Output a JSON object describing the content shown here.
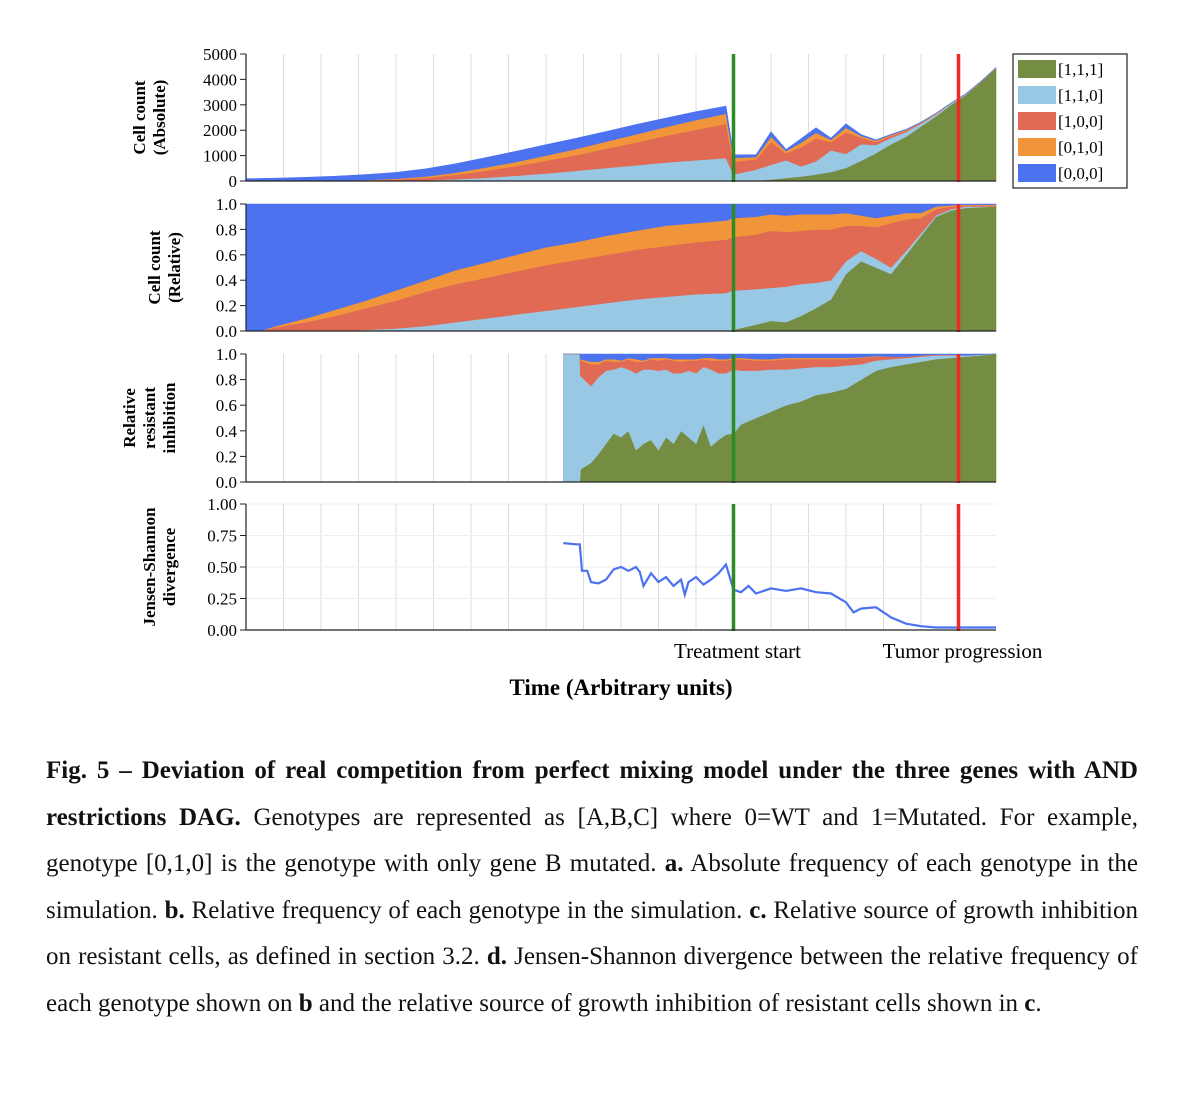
{
  "chart_data": [
    {
      "panel": "a",
      "type": "area",
      "stacked": true,
      "ylabel": [
        "Cell count",
        "(Absolute)"
      ],
      "yticks": [
        "0",
        "1000",
        "2000",
        "3000",
        "4000",
        "5000"
      ],
      "ylim": [
        0,
        5000
      ],
      "x": [
        0,
        4,
        8,
        12,
        16,
        20,
        24,
        28,
        32,
        36,
        40,
        44,
        48,
        52,
        56,
        60,
        64,
        65,
        68,
        70,
        72,
        74,
        76,
        78,
        80,
        82,
        84,
        86,
        88,
        90,
        92,
        94,
        96,
        98,
        100
      ],
      "series": [
        {
          "name": "[1,1,1]",
          "color": "#758c43",
          "values": [
            0,
            0,
            0,
            0,
            0,
            0,
            0,
            0,
            0,
            0,
            0,
            0,
            0,
            0,
            0,
            0,
            0,
            0,
            20,
            60,
            120,
            180,
            260,
            360,
            520,
            800,
            1100,
            1450,
            1750,
            2150,
            2550,
            3000,
            3400,
            3900,
            4450
          ]
        },
        {
          "name": "[1,1,0]",
          "color": "#98c8e3",
          "values": [
            0,
            0,
            0,
            1,
            3,
            10,
            30,
            70,
            130,
            210,
            300,
            400,
            510,
            620,
            730,
            820,
            900,
            260,
            430,
            580,
            700,
            400,
            520,
            850,
            550,
            650,
            320,
            250,
            180,
            110,
            80,
            50,
            30,
            15,
            10
          ]
        },
        {
          "name": "[1,0,0]",
          "color": "#e16a54",
          "values": [
            0,
            1,
            4,
            10,
            22,
            50,
            100,
            180,
            280,
            380,
            500,
            620,
            760,
            900,
            1050,
            1200,
            1350,
            500,
            400,
            900,
            280,
            750,
            900,
            320,
            850,
            250,
            120,
            80,
            50,
            30,
            20,
            10,
            5,
            5,
            0
          ]
        },
        {
          "name": "[0,1,0]",
          "color": "#f1953a",
          "values": [
            0,
            1,
            3,
            8,
            16,
            30,
            50,
            80,
            120,
            160,
            200,
            240,
            280,
            320,
            350,
            380,
            400,
            150,
            100,
            200,
            80,
            180,
            220,
            100,
            180,
            80,
            50,
            40,
            30,
            20,
            10,
            5,
            5,
            0,
            0
          ]
        },
        {
          "name": "[0,0,0]",
          "color": "#4c72f0",
          "values": [
            90,
            110,
            140,
            170,
            210,
            250,
            300,
            350,
            390,
            420,
            430,
            420,
            400,
            380,
            350,
            330,
            300,
            120,
            80,
            200,
            60,
            150,
            200,
            60,
            150,
            50,
            30,
            20,
            20,
            10,
            10,
            5,
            0,
            0,
            0
          ]
        }
      ],
      "legend_position": "top-right",
      "markers": [
        {
          "x": 65,
          "color": "#2e8a23"
        },
        {
          "x": 95,
          "color": "#ec2c22"
        }
      ]
    },
    {
      "panel": "b",
      "type": "area",
      "stacked": true,
      "ylabel": [
        "Cell count",
        "(Relative)"
      ],
      "yticks": [
        "0.0",
        "0.2",
        "0.4",
        "0.6",
        "0.8",
        "1.0"
      ],
      "ylim": [
        0,
        1
      ],
      "x": [
        0,
        2,
        4,
        8,
        12,
        16,
        20,
        24,
        28,
        32,
        36,
        40,
        44,
        48,
        52,
        56,
        60,
        64,
        65,
        68,
        70,
        72,
        74,
        76,
        78,
        80,
        82,
        84,
        86,
        88,
        90,
        92,
        94,
        96,
        100
      ],
      "series": [
        {
          "name": "[1,1,1]",
          "values": [
            0,
            0,
            0,
            0,
            0,
            0,
            0,
            0,
            0,
            0,
            0,
            0,
            0,
            0,
            0,
            0,
            0,
            0,
            0.01,
            0.05,
            0.08,
            0.07,
            0.12,
            0.18,
            0.25,
            0.45,
            0.55,
            0.5,
            0.45,
            0.6,
            0.75,
            0.9,
            0.95,
            0.97,
            0.98
          ]
        },
        {
          "name": "[1,1,0]",
          "values": [
            0,
            0,
            0,
            0,
            0,
            0.01,
            0.02,
            0.04,
            0.07,
            0.1,
            0.13,
            0.16,
            0.19,
            0.22,
            0.25,
            0.27,
            0.29,
            0.3,
            0.31,
            0.28,
            0.26,
            0.28,
            0.25,
            0.2,
            0.15,
            0.1,
            0.08,
            0.07,
            0.05,
            0.03,
            0.02,
            0.01,
            0.01,
            0.01,
            0
          ]
        },
        {
          "name": "[1,0,0]",
          "values": [
            0,
            0,
            0.03,
            0.07,
            0.12,
            0.17,
            0.22,
            0.27,
            0.3,
            0.32,
            0.34,
            0.36,
            0.37,
            0.38,
            0.39,
            0.4,
            0.41,
            0.42,
            0.42,
            0.43,
            0.45,
            0.43,
            0.42,
            0.42,
            0.4,
            0.28,
            0.2,
            0.25,
            0.35,
            0.25,
            0.12,
            0.05,
            0.02,
            0.01,
            0.01
          ]
        },
        {
          "name": "[0,1,0]",
          "values": [
            0,
            0,
            0.01,
            0.03,
            0.05,
            0.06,
            0.08,
            0.09,
            0.11,
            0.12,
            0.13,
            0.14,
            0.14,
            0.15,
            0.15,
            0.16,
            0.15,
            0.15,
            0.15,
            0.14,
            0.13,
            0.13,
            0.13,
            0.12,
            0.12,
            0.1,
            0.08,
            0.07,
            0.06,
            0.05,
            0.04,
            0.02,
            0.01,
            0.005,
            0.005
          ]
        },
        {
          "name": "[0,0,0]",
          "values": [
            1,
            1,
            0.96,
            0.9,
            0.83,
            0.76,
            0.68,
            0.6,
            0.52,
            0.46,
            0.4,
            0.34,
            0.3,
            0.25,
            0.21,
            0.17,
            0.15,
            0.13,
            0.12,
            0.1,
            0.08,
            0.09,
            0.08,
            0.08,
            0.08,
            0.07,
            0.09,
            0.11,
            0.09,
            0.07,
            0.07,
            0.02,
            0.01,
            0.005,
            0.005
          ]
        }
      ],
      "markers": [
        {
          "x": 65,
          "color": "#2e8a23"
        },
        {
          "x": 95,
          "color": "#ec2c22"
        }
      ]
    },
    {
      "panel": "c",
      "type": "area",
      "stacked": true,
      "ylabel": [
        "Relative",
        "resistant",
        "inhibition"
      ],
      "yticks": [
        "0.0",
        "0.2",
        "0.4",
        "0.6",
        "0.8",
        "1.0"
      ],
      "ylim": [
        0,
        1
      ],
      "x": [
        42.3,
        44.5,
        44.6,
        46,
        47,
        48,
        49,
        50,
        51,
        52,
        53,
        54,
        55,
        56,
        57,
        58,
        59,
        60,
        61,
        62,
        63,
        64,
        65,
        66,
        68,
        70,
        72,
        74,
        76,
        78,
        80,
        82,
        84,
        86,
        88,
        90,
        92,
        94,
        96,
        98,
        100
      ],
      "series": [
        {
          "name": "[1,1,1]",
          "values": [
            0,
            0,
            0.1,
            0.15,
            0.22,
            0.3,
            0.38,
            0.35,
            0.4,
            0.25,
            0.3,
            0.33,
            0.25,
            0.35,
            0.3,
            0.4,
            0.35,
            0.3,
            0.45,
            0.28,
            0.33,
            0.37,
            0.38,
            0.45,
            0.5,
            0.55,
            0.6,
            0.63,
            0.68,
            0.7,
            0.73,
            0.8,
            0.87,
            0.9,
            0.92,
            0.94,
            0.96,
            0.97,
            0.98,
            0.99,
            1.0
          ]
        },
        {
          "name": "[1,1,0]",
          "values": [
            1,
            1,
            0.73,
            0.6,
            0.6,
            0.57,
            0.5,
            0.55,
            0.48,
            0.6,
            0.58,
            0.55,
            0.62,
            0.53,
            0.55,
            0.45,
            0.52,
            0.55,
            0.45,
            0.6,
            0.52,
            0.48,
            0.5,
            0.42,
            0.37,
            0.33,
            0.28,
            0.26,
            0.22,
            0.2,
            0.18,
            0.12,
            0.08,
            0.06,
            0.05,
            0.04,
            0.03,
            0.02,
            0.01,
            0.005,
            0
          ]
        },
        {
          "name": "[1,0,0]",
          "values": [
            0,
            0,
            0.12,
            0.17,
            0.1,
            0.08,
            0.06,
            0.04,
            0.08,
            0.09,
            0.06,
            0.08,
            0.08,
            0.08,
            0.1,
            0.09,
            0.08,
            0.1,
            0.06,
            0.07,
            0.1,
            0.1,
            0.08,
            0.09,
            0.08,
            0.07,
            0.08,
            0.07,
            0.06,
            0.06,
            0.05,
            0.05,
            0.03,
            0.02,
            0.01,
            0.01,
            0.005,
            0.005,
            0,
            0,
            0
          ]
        },
        {
          "name": "[0,1,0]",
          "values": [
            0,
            0,
            0.01,
            0.02,
            0.02,
            0.01,
            0.02,
            0.01,
            0.01,
            0.02,
            0.01,
            0.01,
            0.02,
            0.01,
            0.01,
            0.02,
            0.01,
            0.01,
            0.01,
            0.02,
            0.01,
            0.01,
            0.01,
            0.01,
            0.01,
            0.01,
            0.01,
            0.01,
            0.01,
            0.01,
            0.01,
            0.005,
            0.005,
            0,
            0,
            0,
            0,
            0,
            0,
            0,
            0
          ]
        },
        {
          "name": "[0,0,0]",
          "values": [
            0,
            0,
            0.04,
            0.06,
            0.06,
            0.04,
            0.04,
            0.05,
            0.03,
            0.04,
            0.05,
            0.03,
            0.03,
            0.03,
            0.04,
            0.04,
            0.04,
            0.04,
            0.03,
            0.03,
            0.04,
            0.04,
            0.03,
            0.03,
            0.04,
            0.04,
            0.03,
            0.03,
            0.03,
            0.03,
            0.03,
            0.025,
            0.015,
            0.02,
            0.02,
            0.01,
            0.005,
            0.005,
            0.01,
            0.005,
            0
          ]
        }
      ],
      "markers": [
        {
          "x": 65,
          "color": "#2e8a23"
        },
        {
          "x": 95,
          "color": "#ec2c22"
        }
      ]
    },
    {
      "panel": "d",
      "type": "line",
      "ylabel": [
        "Jensen-Shannon",
        "divergence"
      ],
      "yticks": [
        "0.00",
        "0.25",
        "0.50",
        "0.75",
        "1.00"
      ],
      "ylim": [
        0,
        1
      ],
      "xlabel": "Time (Arbitrary units)",
      "series": [
        {
          "color": "#4c72f0",
          "x": [
            42.3,
            44,
            44.5,
            44.8,
            45.5,
            46,
            47,
            48,
            49,
            50,
            51,
            52,
            52.5,
            53,
            54,
            55,
            56,
            57,
            58,
            58.5,
            59,
            60,
            61,
            62,
            63,
            64,
            65,
            66,
            67,
            68,
            70,
            72,
            74,
            76,
            78,
            80,
            81,
            82,
            84,
            86,
            88,
            90,
            92,
            94,
            96,
            98,
            100
          ],
          "y": [
            0.69,
            0.68,
            0.68,
            0.47,
            0.47,
            0.38,
            0.37,
            0.4,
            0.48,
            0.5,
            0.47,
            0.5,
            0.46,
            0.35,
            0.45,
            0.38,
            0.42,
            0.35,
            0.4,
            0.28,
            0.38,
            0.42,
            0.36,
            0.4,
            0.45,
            0.52,
            0.32,
            0.3,
            0.35,
            0.29,
            0.33,
            0.31,
            0.33,
            0.3,
            0.29,
            0.22,
            0.14,
            0.17,
            0.18,
            0.1,
            0.05,
            0.03,
            0.02,
            0.02,
            0.02,
            0.02,
            0.02
          ]
        }
      ],
      "markers": [
        {
          "x": 65,
          "color": "#2e8a23"
        },
        {
          "x": 95,
          "color": "#ec2c22"
        }
      ],
      "annotations": [
        "Treatment start",
        "Tumor progression"
      ]
    }
  ],
  "caption": {
    "fig_title": "Fig. 5 – Deviation of real competition from perfect mixing model under the three genes with AND restrictions DAG.",
    "text1": " Genotypes are represented as [A,B,C] where 0=WT and 1=Mutated. For example, genotype [0,1,0] is the genotype with only gene B mutated. ",
    "a_label": "a.",
    "a_text": " Absolute frequency of each genotype in the simulation. ",
    "b_label": "b.",
    "b_text": " Relative frequency of each genotype in the simulation. ",
    "c_label": "c.",
    "c_text": " Relative source of growth inhibition on resistant cells, as defined in section 3.2. ",
    "d_label": "d.",
    "d_text": " Jensen-Shannon divergence between the relative frequency of each genotype shown on ",
    "d_b": "b",
    "d_text2": " and the relative source of growth inhibition of resistant cells shown in ",
    "d_c": "c",
    "d_end": "."
  }
}
